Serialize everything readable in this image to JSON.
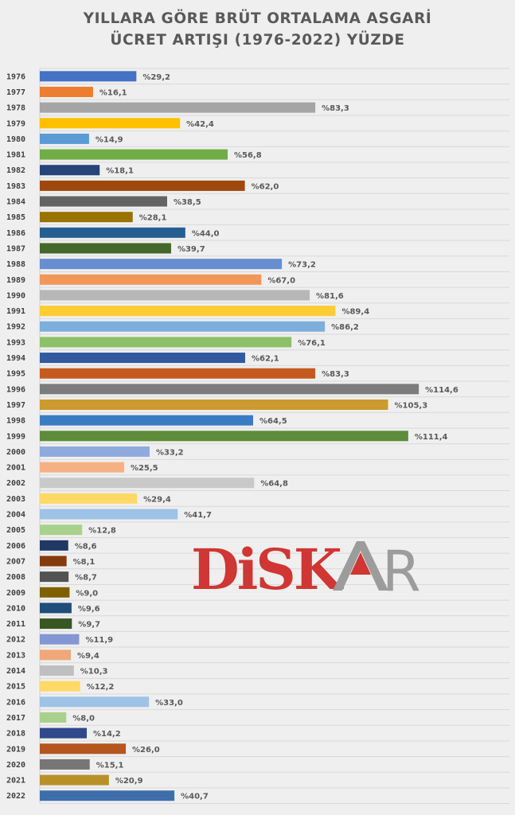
{
  "chart_data": {
    "type": "bar",
    "orientation": "horizontal",
    "title": "YILLARA GÖRE BRÜT ORTALAMA ASGARİ ÜCRET ARTIŞI (1976-2022) YÜZDE",
    "title_lines": [
      "YILLARA GÖRE BRÜT ORTALAMA ASGARİ",
      "ÜCRET ARTIŞI (1976-2022) YÜZDE"
    ],
    "xlabel": "",
    "ylabel": "",
    "xlim": [
      0,
      140
    ],
    "grid": true,
    "value_prefix": "%",
    "categories": [
      "1976",
      "1977",
      "1978",
      "1979",
      "1980",
      "1981",
      "1982",
      "1983",
      "1984",
      "1985",
      "1986",
      "1987",
      "1988",
      "1989",
      "1990",
      "1991",
      "1992",
      "1993",
      "1994",
      "1995",
      "1996",
      "1997",
      "1998",
      "1999",
      "2000",
      "2001",
      "2002",
      "2003",
      "2004",
      "2005",
      "2006",
      "2007",
      "2008",
      "2009",
      "2010",
      "2011",
      "2012",
      "2013",
      "2014",
      "2015",
      "2016",
      "2017",
      "2018",
      "2019",
      "2020",
      "2021",
      "2022"
    ],
    "values": [
      29.2,
      16.1,
      83.3,
      42.4,
      14.9,
      56.8,
      18.1,
      62.0,
      38.5,
      28.1,
      44.0,
      39.7,
      73.2,
      67.0,
      81.6,
      89.4,
      86.2,
      76.1,
      62.1,
      83.3,
      114.6,
      105.3,
      64.5,
      111.4,
      33.2,
      25.5,
      64.8,
      29.4,
      41.7,
      12.8,
      8.6,
      8.1,
      8.7,
      9.0,
      9.6,
      9.7,
      11.9,
      9.4,
      10.3,
      12.2,
      33.0,
      8.0,
      14.2,
      26.0,
      15.1,
      20.9,
      40.7
    ],
    "data_labels": [
      "%29,2",
      "%16,1",
      "%83,3",
      "%42,4",
      "%14,9",
      "%56,8",
      "%18,1",
      "%62,0",
      "%38,5",
      "%28,1",
      "%44,0",
      "%39,7",
      "%73,2",
      "%67,0",
      "%81,6",
      "%89,4",
      "%86,2",
      "%76,1",
      "%62,1",
      "%83,3",
      "%114,6",
      "%105,3",
      "%64,5",
      "%111,4",
      "%33,2",
      "%25,5",
      "%64,8",
      "%29,4",
      "%41,7",
      "%12,8",
      "%8,6",
      "%8,1",
      "%8,7",
      "%9,0",
      "%9,6",
      "%9,7",
      "%11,9",
      "%9,4",
      "%10,3",
      "%12,2",
      "%33,0",
      "%8,0",
      "%14,2",
      "%26,0",
      "%15,1",
      "%20,9",
      "%40,7"
    ],
    "colors": [
      "#4472C4",
      "#ED7D31",
      "#A5A5A5",
      "#FFC000",
      "#5B9BD5",
      "#70AD47",
      "#264478",
      "#9E480E",
      "#636363",
      "#997300",
      "#255E91",
      "#43682B",
      "#698ED0",
      "#F1975A",
      "#B7B7B7",
      "#FFCD33",
      "#7CAFDD",
      "#8CC168",
      "#335AA1",
      "#C55A1E",
      "#7C7C7C",
      "#CC9A2E",
      "#3A7CC4",
      "#5E8C3A",
      "#8FAADC",
      "#F4B183",
      "#C9C9C9",
      "#FFD966",
      "#9DC3E6",
      "#A9D18E",
      "#203864",
      "#843C0C",
      "#525252",
      "#7F6000",
      "#1F4E79",
      "#385723",
      "#8497D3",
      "#F0A878",
      "#BFBFBF",
      "#FFD966",
      "#9DC3E6",
      "#A9D18E",
      "#2F4A8A",
      "#B4561E",
      "#767676",
      "#B8902A",
      "#3E6EAA"
    ]
  },
  "logo": {
    "text": "DİSKAR",
    "part1": "DiSK",
    "part2": "AR",
    "colors": {
      "red": "#D03633",
      "gray": "#9C9C9C"
    }
  }
}
